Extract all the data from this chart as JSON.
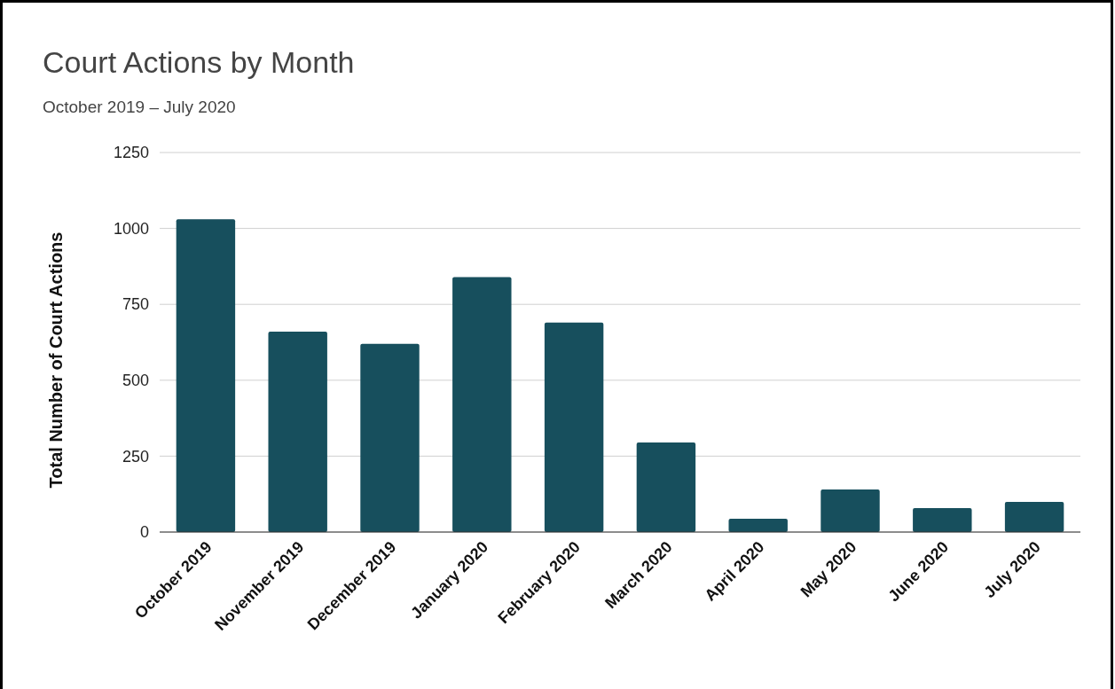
{
  "chart_data": {
    "type": "bar",
    "title": "Court Actions by Month",
    "subtitle": "October 2019 – July 2020",
    "ylabel": "Total Number of Court Actions",
    "categories": [
      "October 2019",
      "November 2019",
      "December 2019",
      "January 2020",
      "February 2020",
      "March 2020",
      "April 2020",
      "May 2020",
      "June 2020",
      "July 2020"
    ],
    "values": [
      1030,
      660,
      620,
      840,
      690,
      295,
      44,
      140,
      79,
      99
    ],
    "color": "#174f5d",
    "ylim": [
      0,
      1250
    ],
    "yticks": [
      0,
      250,
      500,
      750,
      1000,
      1250
    ],
    "grid": "y"
  }
}
